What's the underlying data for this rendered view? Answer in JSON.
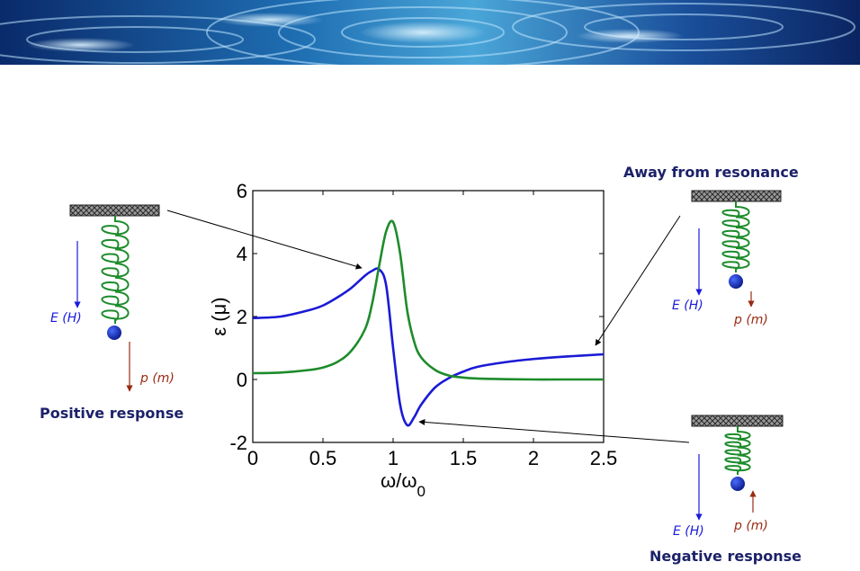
{
  "banner": {
    "description_icon": "water-ripple-banner"
  },
  "chart_data": {
    "type": "line",
    "xlabel_main": "ω/ω",
    "xlabel_sub": "0",
    "ylabel": "ε (μ)",
    "xlim": [
      0,
      2.5
    ],
    "ylim": [
      -2,
      6
    ],
    "xticks": [
      "0",
      "0.5",
      "1",
      "1.5",
      "2",
      "2.5"
    ],
    "yticks": [
      "-2",
      "0",
      "2",
      "4",
      "6"
    ],
    "x": [
      0,
      0.2,
      0.4,
      0.5,
      0.6,
      0.7,
      0.8,
      0.85,
      0.9,
      0.95,
      1.0,
      1.05,
      1.1,
      1.15,
      1.2,
      1.3,
      1.4,
      1.5,
      1.6,
      1.8,
      2.0,
      2.2,
      2.5
    ],
    "series": [
      {
        "color": "#1a1ad6",
        "values": [
          1.95,
          2.0,
          2.2,
          2.35,
          2.6,
          2.9,
          3.3,
          3.45,
          3.5,
          3.0,
          1.0,
          -0.8,
          -1.45,
          -1.2,
          -0.8,
          -0.25,
          0.05,
          0.25,
          0.4,
          0.55,
          0.65,
          0.72,
          0.8
        ]
      },
      {
        "color": "#1d8c2b",
        "values": [
          0.2,
          0.22,
          0.3,
          0.38,
          0.55,
          0.9,
          1.6,
          2.4,
          3.6,
          4.7,
          5.0,
          4.0,
          2.2,
          1.2,
          0.7,
          0.3,
          0.12,
          0.06,
          0.03,
          0.01,
          0.0,
          0.0,
          0.0
        ]
      }
    ],
    "colors": {
      "eps_curve": "#1a1ad6",
      "mu_curve": "#1d8c2b"
    }
  },
  "left_panel": {
    "field_label": "E (H)",
    "dipole_label": "p (m)",
    "caption": "Positive response"
  },
  "right_top_panel": {
    "caption": "Away from resonance",
    "field_label": "E (H)",
    "dipole_label": "p (m)"
  },
  "right_bottom_panel": {
    "field_label": "E (H)",
    "dipole_label": "p (m)",
    "caption": "Negative response"
  },
  "colors": {
    "caption": "#1c2169",
    "spring": "#1d8c2b",
    "mass": "#1a2ac8",
    "field_arrow": "#1a1adc",
    "dipole_arrow": "#9a2a12"
  }
}
